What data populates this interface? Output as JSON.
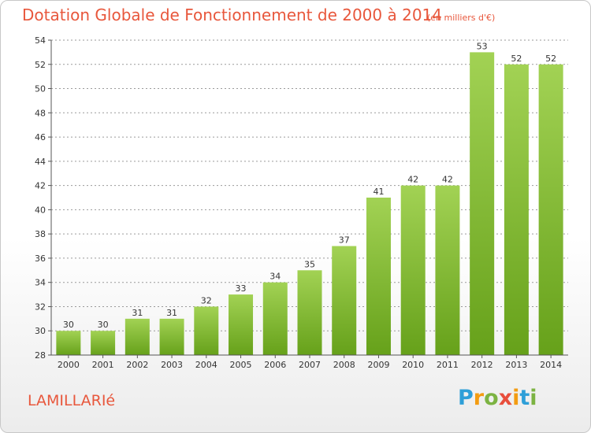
{
  "header": {
    "title": "Dotation Globale de Fonctionnement de 2000 à 2014",
    "subtitle": "(en milliers d'€)"
  },
  "footer": {
    "town": "LAMILLARIé",
    "brand": {
      "letters": [
        "P",
        "r",
        "o",
        "x",
        "i",
        "t",
        "i"
      ],
      "colors": [
        "#2e9fd8",
        "#f39c12",
        "#7cb342",
        "#e84e3c",
        "#f39c12",
        "#2e9fd8",
        "#7cb342"
      ]
    }
  },
  "chart_data": {
    "type": "bar",
    "categories": [
      "2000",
      "2001",
      "2002",
      "2003",
      "2004",
      "2005",
      "2006",
      "2007",
      "2008",
      "2009",
      "2010",
      "2011",
      "2012",
      "2013",
      "2014"
    ],
    "values": [
      30,
      30,
      31,
      31,
      32,
      33,
      34,
      35,
      37,
      41,
      42,
      42,
      53,
      52,
      52
    ],
    "title": "Dotation Globale de Fonctionnement de 2000 à 2014",
    "xlabel": "",
    "ylabel": "",
    "ylim": [
      28,
      54
    ],
    "yticks": [
      28,
      30,
      32,
      34,
      36,
      38,
      40,
      42,
      44,
      46,
      48,
      50,
      52,
      54
    ],
    "grid": true,
    "colors": {
      "bar_top": "#a2d254",
      "bar_bottom": "#66a11a",
      "grid": "#9a9a9a"
    }
  }
}
